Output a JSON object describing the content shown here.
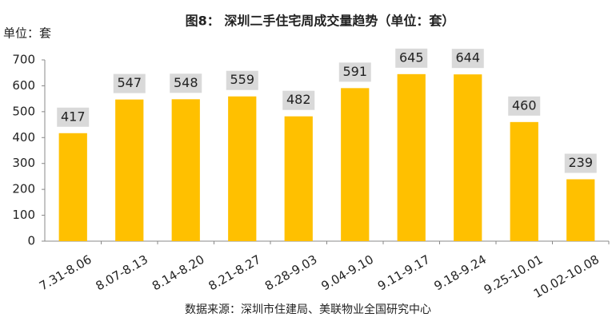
{
  "chart_data": {
    "type": "bar",
    "title": "图8：  深圳二手住宅周成交量趋势（单位：套）",
    "y_label": "单位：套",
    "categories": [
      "7.31-8.06",
      "8.07-8.13",
      "8.14-8.20",
      "8.21-8.27",
      "8.28-9.03",
      "9.04-9.10",
      "9.11-9.17",
      "9.18-9.24",
      "9.25-10.01",
      "10.02-10.08"
    ],
    "values": [
      417,
      547,
      548,
      559,
      482,
      591,
      645,
      644,
      460,
      239
    ],
    "color": "#ffc000",
    "ylim": [
      0,
      700
    ],
    "yticks": [
      0,
      100,
      200,
      300,
      400,
      500,
      600,
      700
    ],
    "source": "数据来源：深圳市住建局、美联物业全国研究中心"
  }
}
